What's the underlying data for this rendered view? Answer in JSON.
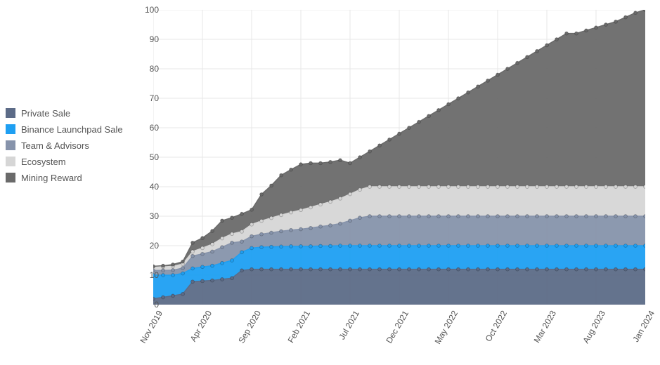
{
  "chart": {
    "type": "stacked-area",
    "background_color": "#ffffff",
    "grid_color": "#e7e7e7",
    "axis_label_color": "#555555",
    "font_family": "Arial",
    "label_fontsize": 12,
    "legend_fontsize": 13,
    "marker": {
      "shape": "circle",
      "radius": 2.4,
      "border_width": 0.9,
      "border_color_offset": "#00000030"
    },
    "ylim": [
      0,
      100
    ],
    "yticks": [
      0,
      10,
      20,
      30,
      40,
      50,
      60,
      70,
      80,
      90,
      100
    ],
    "x_categories": [
      "Nov 2019",
      "Dec 2019",
      "Jan 2020",
      "Feb 2020",
      "Mar 2020",
      "Apr 2020",
      "May 2020",
      "Jun 2020",
      "Jul 2020",
      "Aug 2020",
      "Sep 2020",
      "Oct 2020",
      "Nov 2020",
      "Dec 2020",
      "Jan 2021",
      "Feb 2021",
      "Mar 2021",
      "Apr 2021",
      "May 2021",
      "Jun 2021",
      "Jul 2021",
      "Aug 2021",
      "Sep 2021",
      "Oct 2021",
      "Nov 2021",
      "Dec 2021",
      "Jan 2022",
      "Feb 2022",
      "Mar 2022",
      "Apr 2022",
      "May 2022",
      "Jun 2022",
      "Jul 2022",
      "Aug 2022",
      "Sep 2022",
      "Oct 2022",
      "Nov 2022",
      "Dec 2022",
      "Jan 2023",
      "Feb 2023",
      "Mar 2023",
      "Apr 2023",
      "May 2023",
      "Jun 2023",
      "Jul 2023",
      "Aug 2023",
      "Sep 2023",
      "Oct 2023",
      "Nov 2023",
      "Dec 2023",
      "Jan 2024"
    ],
    "x_tick_labels": [
      "Nov 2019",
      "Apr 2020",
      "Sep 2020",
      "Feb 2021",
      "Jul 2021",
      "Dec 2021",
      "May 2022",
      "Oct 2022",
      "Mar 2023",
      "Aug 2023",
      "Jan 2024"
    ],
    "x_tick_indices": [
      0,
      5,
      10,
      15,
      20,
      25,
      30,
      35,
      40,
      45,
      50
    ],
    "x_tick_rotation_deg": -60,
    "legend_position": "left",
    "series": [
      {
        "name": "Private Sale",
        "label": "Private Sale",
        "color": "#5c6b87",
        "values": [
          2.0,
          2.5,
          3.0,
          3.6,
          7.8,
          8.0,
          8.2,
          8.6,
          9.0,
          11.6,
          12.0,
          12.0,
          12.0,
          12.0,
          12.0,
          12.0,
          12.0,
          12.0,
          12.0,
          12.0,
          12.0,
          12.0,
          12.0,
          12.0,
          12.0,
          12.0,
          12.0,
          12.0,
          12.0,
          12.0,
          12.0,
          12.0,
          12.0,
          12.0,
          12.0,
          12.0,
          12.0,
          12.0,
          12.0,
          12.0,
          12.0,
          12.0,
          12.0,
          12.0,
          12.0,
          12.0,
          12.0,
          12.0,
          12.0,
          12.0,
          12.0
        ]
      },
      {
        "name": "Binance Launchpad Sale",
        "label": "Binance Launchpad Sale",
        "color": "#1e9ff2",
        "values": [
          8.0,
          7.5,
          7.0,
          7.0,
          4.5,
          4.8,
          5.0,
          5.5,
          6.0,
          6.2,
          7.2,
          7.5,
          7.6,
          7.7,
          7.8,
          7.8,
          7.8,
          7.9,
          7.9,
          8.0,
          8.0,
          8.0,
          8.0,
          8.0,
          8.0,
          8.0,
          8.0,
          8.0,
          8.0,
          8.0,
          8.0,
          8.0,
          8.0,
          8.0,
          8.0,
          8.0,
          8.0,
          8.0,
          8.0,
          8.0,
          8.0,
          8.0,
          8.0,
          8.0,
          8.0,
          8.0,
          8.0,
          8.0,
          8.0,
          8.0,
          8.0
        ]
      },
      {
        "name": "Team & Advisors",
        "label": "Team & Advisors",
        "color": "#8693ab",
        "values": [
          1.6,
          1.6,
          1.7,
          1.8,
          4.2,
          4.4,
          4.8,
          5.4,
          6.0,
          3.6,
          4.0,
          4.4,
          4.8,
          5.2,
          5.5,
          5.8,
          6.2,
          6.6,
          7.0,
          7.5,
          8.5,
          9.5,
          10.0,
          10.0,
          10.0,
          10.0,
          10.0,
          10.0,
          10.0,
          10.0,
          10.0,
          10.0,
          10.0,
          10.0,
          10.0,
          10.0,
          10.0,
          10.0,
          10.0,
          10.0,
          10.0,
          10.0,
          10.0,
          10.0,
          10.0,
          10.0,
          10.0,
          10.0,
          10.0,
          10.0,
          10.0
        ]
      },
      {
        "name": "Ecosystem",
        "label": "Ecosystem",
        "color": "#d6d6d6",
        "values": [
          1.2,
          1.2,
          1.3,
          1.4,
          1.5,
          2.0,
          2.5,
          3.0,
          3.0,
          3.4,
          4.0,
          4.5,
          5.0,
          5.5,
          6.0,
          6.5,
          7.0,
          7.5,
          8.0,
          8.5,
          9.0,
          9.5,
          10.0,
          10.0,
          10.0,
          10.0,
          10.0,
          10.0,
          10.0,
          10.0,
          10.0,
          10.0,
          10.0,
          10.0,
          10.0,
          10.0,
          10.0,
          10.0,
          10.0,
          10.0,
          10.0,
          10.0,
          10.0,
          10.0,
          10.0,
          10.0,
          10.0,
          10.0,
          10.0,
          10.0,
          10.0
        ]
      },
      {
        "name": "Mining Reward",
        "label": "Mining Reward",
        "color": "#6a6a6a",
        "values": [
          0.2,
          0.4,
          0.6,
          0.8,
          3.0,
          3.4,
          4.5,
          6.0,
          5.5,
          6.0,
          5.0,
          9.0,
          11.0,
          13.5,
          14.5,
          15.5,
          15.0,
          14.0,
          13.5,
          13.0,
          10.5,
          11.0,
          12.0,
          14.0,
          16.0,
          18.0,
          20.0,
          22.0,
          24.0,
          26.0,
          28.0,
          30.0,
          32.0,
          34.0,
          36.0,
          38.0,
          40.0,
          42.0,
          44.0,
          46.0,
          48.0,
          50.0,
          52.0,
          52.0,
          53.0,
          54.0,
          55.0,
          56.0,
          57.5,
          59.0,
          60.0
        ]
      }
    ]
  }
}
